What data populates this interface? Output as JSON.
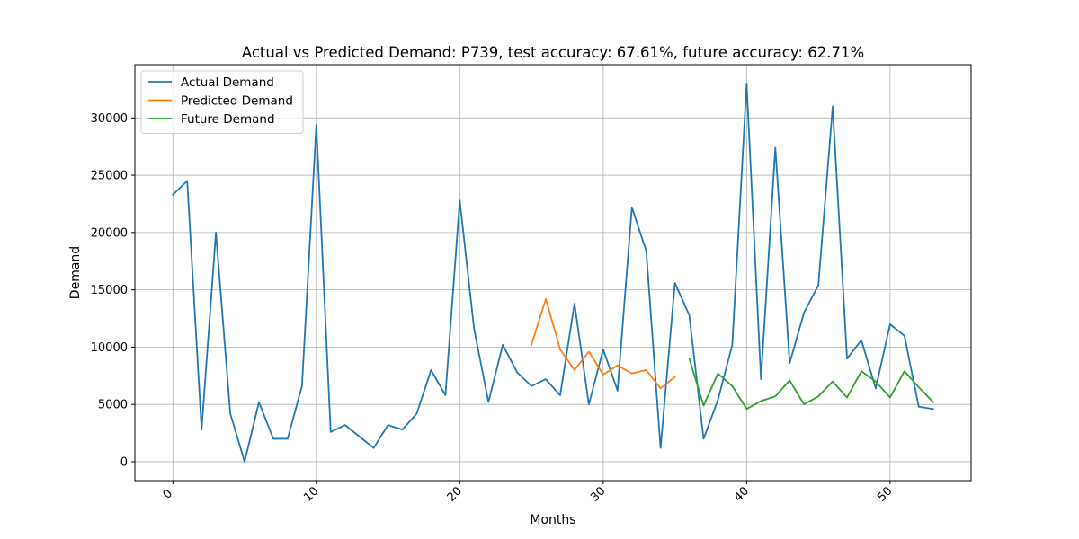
{
  "chart_data": {
    "type": "line",
    "title": "Actual vs Predicted Demand: P739, test accuracy: 67.61%, future accuracy: 62.71%",
    "xlabel": "Months",
    "ylabel": "Demand",
    "xlim": [
      -2.65,
      55.65
    ],
    "ylim": [
      -1650,
      34650
    ],
    "xticks": [
      0,
      10,
      20,
      30,
      40,
      50
    ],
    "yticks": [
      0,
      5000,
      10000,
      15000,
      20000,
      25000,
      30000
    ],
    "grid": true,
    "legend_position": "upper-left",
    "series": [
      {
        "name": "Actual Demand",
        "color": "#1f77b4",
        "x": [
          0,
          1,
          2,
          3,
          4,
          5,
          6,
          7,
          8,
          9,
          10,
          11,
          12,
          13,
          14,
          15,
          16,
          17,
          18,
          19,
          20,
          21,
          22,
          23,
          24,
          25,
          26,
          27,
          28,
          29,
          30,
          31,
          32,
          33,
          34,
          35,
          36,
          37,
          38,
          39,
          40,
          41,
          42,
          43,
          44,
          45,
          46,
          47,
          48,
          49,
          50,
          51,
          52,
          53
        ],
        "values": [
          23300,
          24500,
          2800,
          20000,
          4200,
          0,
          5200,
          2000,
          2000,
          6600,
          29400,
          2600,
          3200,
          2200,
          1200,
          3200,
          2800,
          4200,
          8000,
          5800,
          22800,
          11600,
          5200,
          10200,
          7800,
          6600,
          7200,
          5800,
          13800,
          5000,
          9800,
          6200,
          22200,
          18400,
          1200,
          15600,
          12800,
          2000,
          5400,
          10200,
          33000,
          7200,
          27400,
          8600,
          13000,
          15400,
          31000,
          9000,
          10600,
          6400,
          12000,
          11000,
          4800,
          4600
        ]
      },
      {
        "name": "Predicted Demand",
        "color": "#ff7f0e",
        "x": [
          25,
          26,
          27,
          28,
          29,
          30,
          31,
          32,
          33,
          34,
          35
        ],
        "values": [
          10200,
          14200,
          9800,
          8000,
          9600,
          7600,
          8400,
          7700,
          8000,
          6400,
          7400
        ]
      },
      {
        "name": "Future Demand",
        "color": "#2ca02c",
        "x": [
          36,
          37,
          38,
          39,
          40,
          41,
          42,
          43,
          44,
          45,
          46,
          47,
          48,
          49,
          50,
          51,
          52,
          53
        ],
        "values": [
          9000,
          4900,
          7700,
          6600,
          4600,
          5300,
          5700,
          7100,
          5000,
          5700,
          7000,
          5600,
          7900,
          7000,
          5600,
          7900,
          6500,
          5200
        ]
      }
    ]
  }
}
